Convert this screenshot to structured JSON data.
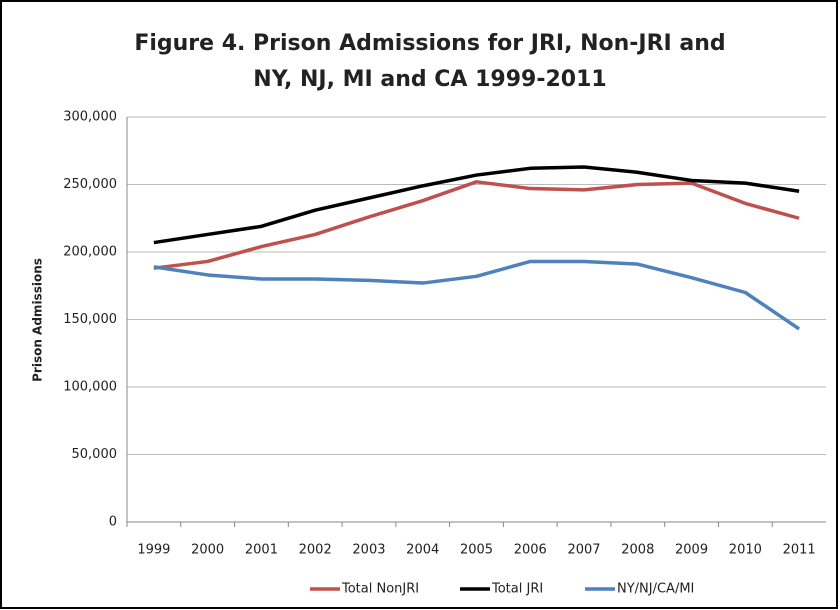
{
  "chart_data": {
    "type": "line",
    "title": [
      "Figure 4.  Prison Admissions for JRI, Non-JRI and",
      "NY, NJ, MI and CA 1999-2011"
    ],
    "y_label": "Prison Admissions",
    "categories": [
      "1999",
      "2000",
      "2001",
      "2002",
      "2003",
      "2004",
      "2005",
      "2006",
      "2007",
      "2008",
      "2009",
      "2010",
      "2011"
    ],
    "series": [
      {
        "name": "Total NonJRI",
        "color": "#c0504d",
        "values": [
          188000,
          193000,
          204000,
          213000,
          226000,
          238000,
          252000,
          247000,
          246000,
          250000,
          251000,
          236000,
          225000
        ]
      },
      {
        "name": "Total JRI",
        "color": "#000000",
        "values": [
          207000,
          213000,
          219000,
          231000,
          240000,
          249000,
          257000,
          262000,
          263000,
          259000,
          253000,
          251000,
          245000
        ]
      },
      {
        "name": "NY/NJ/CA/MI",
        "color": "#4f81bd",
        "values": [
          189000,
          183000,
          180000,
          180000,
          179000,
          177000,
          182000,
          193000,
          193000,
          191000,
          181000,
          170000,
          143000
        ]
      }
    ],
    "ylim": [
      0,
      300000
    ],
    "yticks": [
      0,
      {
        "value": 50000,
        "label": "50,000"
      },
      {
        "value": 100000,
        "label": "100,000"
      },
      {
        "value": 150000,
        "label": "150,000"
      },
      {
        "value": 200000,
        "label": "200,000"
      },
      {
        "value": 250000,
        "label": "250,000"
      },
      {
        "value": 300000,
        "label": "300,000"
      }
    ],
    "grid": true,
    "legend": "bottom"
  }
}
